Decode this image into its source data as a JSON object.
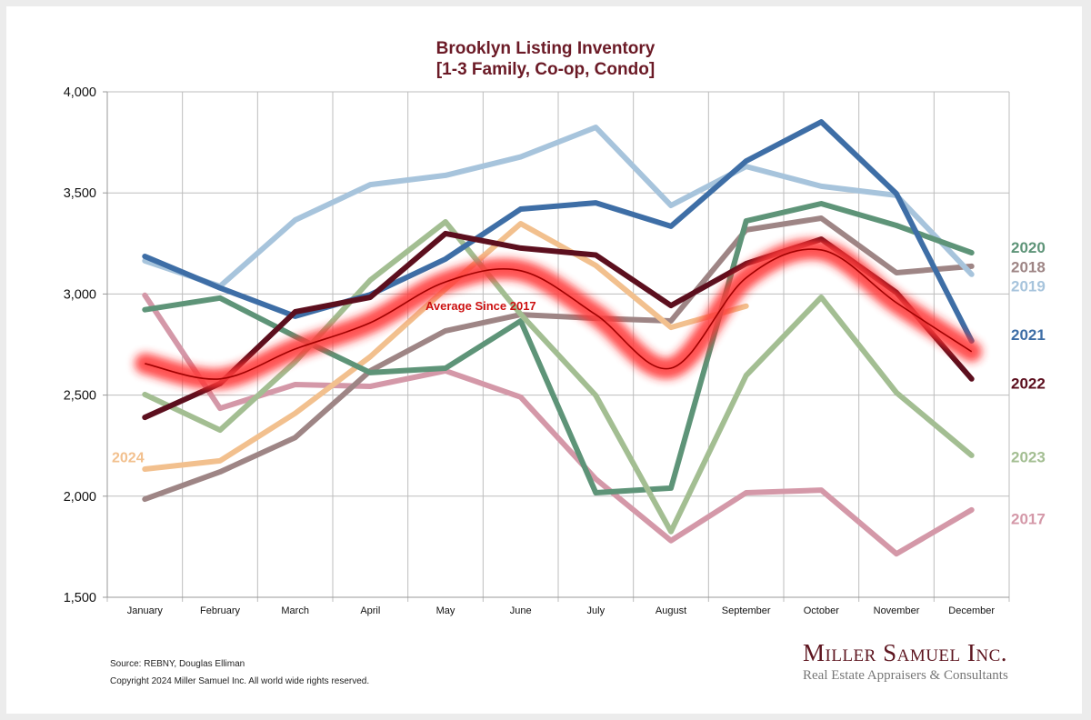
{
  "chart_data": {
    "type": "line",
    "title": "Brooklyn Listing Inventory",
    "subtitle": "[1-3 Family, Co-op, Condo]",
    "xlabel": "",
    "ylabel": "",
    "ylim": [
      1500,
      4000
    ],
    "y_ticks": [
      "1,500",
      "2,000",
      "2,500",
      "3,000",
      "3,500",
      "4,000"
    ],
    "y_tick_values": [
      1500,
      2000,
      2500,
      3000,
      3500,
      4000
    ],
    "grid": true,
    "categories": [
      "January",
      "February",
      "March",
      "April",
      "May",
      "June",
      "July",
      "August",
      "September",
      "October",
      "November",
      "December"
    ],
    "series": [
      {
        "name": "2017",
        "color": "#d498a8",
        "values": [
          2994,
          2435,
          2552,
          2543,
          2620,
          2490,
          2085,
          1780,
          2017,
          2030,
          1715,
          1932
        ]
      },
      {
        "name": "2018",
        "color": "#9e8585",
        "values": [
          1985,
          2120,
          2290,
          2620,
          2818,
          2898,
          2880,
          2867,
          3317,
          3375,
          3105,
          3137
        ]
      },
      {
        "name": "2019",
        "color": "#a7c4dc",
        "values": [
          3164,
          3038,
          3366,
          3541,
          3587,
          3678,
          3824,
          3438,
          3631,
          3533,
          3488,
          3097
        ]
      },
      {
        "name": "2020",
        "color": "#5e9478",
        "values": [
          2922,
          2980,
          2790,
          2611,
          2633,
          2867,
          2017,
          2040,
          3361,
          3447,
          3339,
          3204
        ]
      },
      {
        "name": "2021",
        "color": "#3e6ea6",
        "values": [
          3186,
          3030,
          2890,
          2997,
          3173,
          3420,
          3451,
          3335,
          3658,
          3851,
          3496,
          2768
        ]
      },
      {
        "name": "2022",
        "color": "#5c0f1e",
        "values": [
          2390,
          2557,
          2912,
          2984,
          3299,
          3227,
          3193,
          2943,
          3150,
          3271,
          3007,
          2580
        ]
      },
      {
        "name": "2023",
        "color": "#a3be92",
        "values": [
          2503,
          2327,
          2665,
          3069,
          3357,
          2900,
          2498,
          1825,
          2597,
          2984,
          2512,
          2202
        ]
      },
      {
        "name": "2024",
        "color": "#f2c08e",
        "values": [
          2134,
          2175,
          2410,
          2690,
          3025,
          3348,
          3141,
          2835,
          2940,
          null,
          null,
          null
        ]
      }
    ],
    "average": {
      "name": "Average  Since 2017",
      "color": "#c00000",
      "glow_color": "#ff2020",
      "values": [
        2656,
        2580,
        2728,
        2858,
        3060,
        3115,
        2898,
        2633,
        3080,
        3218,
        2957,
        2715
      ]
    },
    "legend": {
      "placement": "right",
      "entries": [
        {
          "label": "2020",
          "color": "#5e9478",
          "value": 3230
        },
        {
          "label": "2018",
          "color": "#9e8585",
          "value": 3135
        },
        {
          "label": "2019",
          "color": "#a7c4dc",
          "value": 3040
        },
        {
          "label": "2021",
          "color": "#3e6ea6",
          "value": 2800
        },
        {
          "label": "2022",
          "color": "#5c0f1e",
          "value": 2560
        },
        {
          "label": "2023",
          "color": "#a3be92",
          "value": 2195
        },
        {
          "label": "2017",
          "color": "#d498a8",
          "value": 1890
        }
      ],
      "left_label": {
        "label": "2024",
        "color": "#f2c08e",
        "value": 2195
      }
    }
  },
  "footer": {
    "source": "Source: REBNY, Douglas Elliman",
    "copyright": "Copyright 2024 Miller Samuel Inc.  All world wide rights reserved."
  },
  "logo": {
    "name": "Miller Samuel Inc.",
    "tagline": "Real Estate Appraisers & Consultants"
  }
}
